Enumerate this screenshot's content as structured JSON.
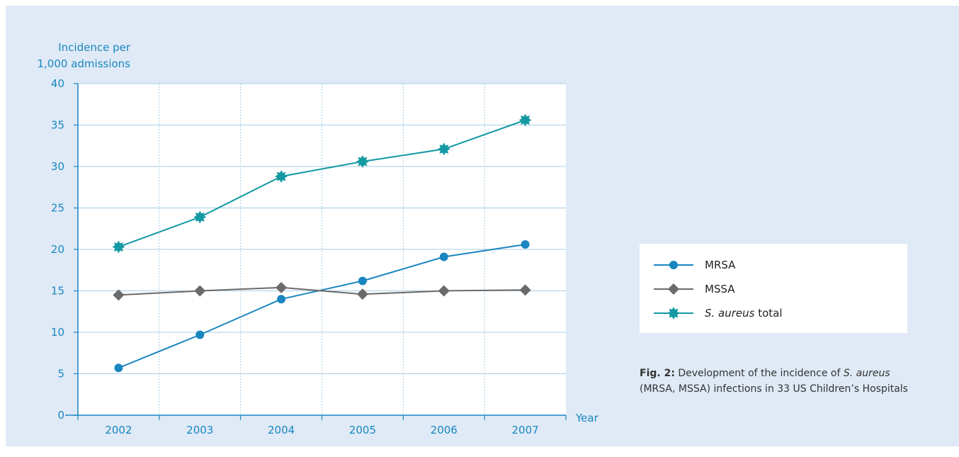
{
  "colors": {
    "panel_bg": "#dfeaf6",
    "axis": "#1a86c0",
    "mrsa": "#1a86c0",
    "mssa": "#6a6a6a",
    "total": "#1499a3"
  },
  "chart_data": {
    "type": "line",
    "title": "",
    "xlabel": "Year",
    "ylabel_line1": "Incidence per",
    "ylabel_line2": "1,000 admissions",
    "categories": [
      "2002",
      "2003",
      "2004",
      "2005",
      "2006",
      "2007"
    ],
    "ylim": [
      0,
      40
    ],
    "yticks": [
      "0",
      "5",
      "10",
      "15",
      "20",
      "25",
      "30",
      "35",
      "40"
    ],
    "grid": true,
    "legend_position": "right",
    "series": [
      {
        "name": "MRSA",
        "marker": "circle",
        "values": [
          5.7,
          9.7,
          14.0,
          16.2,
          19.1,
          20.6
        ]
      },
      {
        "name": "MSSA",
        "marker": "diamond",
        "values": [
          14.5,
          15.0,
          15.4,
          14.6,
          15.0,
          15.1
        ]
      },
      {
        "name_italic": "S. aureus",
        "name_rest": " total",
        "marker": "star",
        "values": [
          20.3,
          23.9,
          28.8,
          30.6,
          32.1,
          35.6
        ]
      }
    ]
  },
  "caption": {
    "fig_label": "Fig. 2:",
    "text1": " Development of the incidence of ",
    "italic1": "S. aureus",
    "text2": "(MRSA, MSSA) infections in 33 US Children’s Hospitals"
  }
}
